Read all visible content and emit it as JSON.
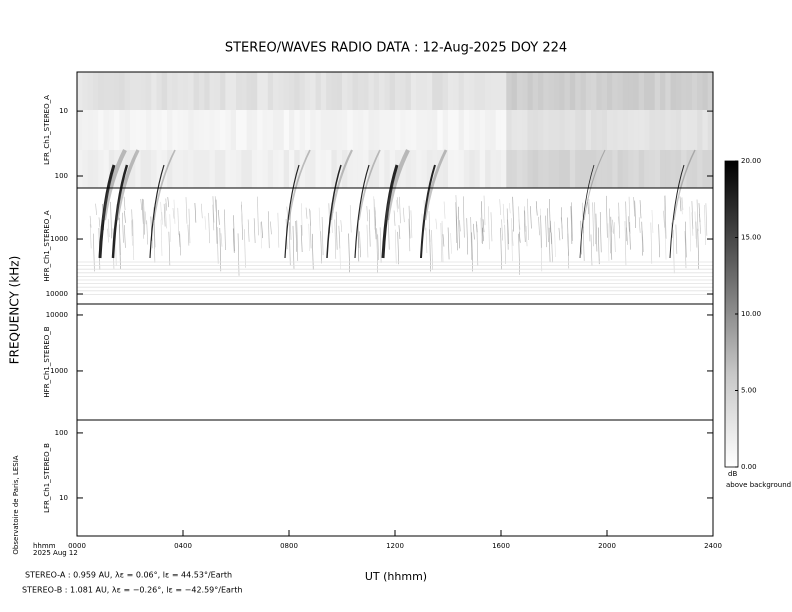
{
  "chart_data": {
    "type": "spectrogram",
    "title": "STEREO/WAVES  RADIO  DATA : 12-Aug-2025  DOY 224",
    "ylabel": "FREQUENCY (kHz)",
    "xlabel": "UT (hhmm)",
    "xlim": [
      0,
      24
    ],
    "xticks": [
      {
        "value": 0,
        "label": "0000"
      },
      {
        "value": 4,
        "label": "0400"
      },
      {
        "value": 8,
        "label": "0800"
      },
      {
        "value": 12,
        "label": "1200"
      },
      {
        "value": 16,
        "label": "1600"
      },
      {
        "value": 20,
        "label": "2000"
      },
      {
        "value": 24,
        "label": "2400"
      }
    ],
    "log_scale": true,
    "panels": [
      {
        "label": "LFR_Ch1_STEREO_A",
        "ylim": [
          2.5,
          153
        ],
        "yticks": [
          10,
          100
        ]
      },
      {
        "label": "HFR_Ch1_STEREO_A",
        "ylim": [
          118,
          15200
        ],
        "yticks": [
          1000,
          10000
        ]
      },
      {
        "label": "HFR_Ch1_STEREO_B",
        "ylim": [
          15700,
          133
        ],
        "yticks": [
          10000,
          1000
        ]
      },
      {
        "label": "LFR_Ch1_STEREO_B",
        "ylim": [
          158,
          2.6
        ],
        "yticks": [
          100,
          10
        ]
      }
    ],
    "colorbar": {
      "clim": [
        0,
        20
      ],
      "ticks": [
        {
          "value": 0,
          "label": "0.00"
        },
        {
          "value": 5,
          "label": "5.00"
        },
        {
          "value": 10,
          "label": "10.00"
        },
        {
          "value": 15,
          "label": "15.00"
        },
        {
          "value": 20,
          "label": "20.00"
        }
      ],
      "unit": "dB",
      "unit_note": "above background"
    },
    "credit": "Observatoire de Paris, LESIA",
    "time_unit": "hhmm",
    "date": "2025 Aug 12",
    "footnotes": [
      "STEREO-A : 0.959 AU, λε = 0.06°, lε = 44.53°/Earth",
      "STEREO-B : 1.081 AU, λε = −0.26°, lε = −42.59°/Earth"
    ]
  }
}
